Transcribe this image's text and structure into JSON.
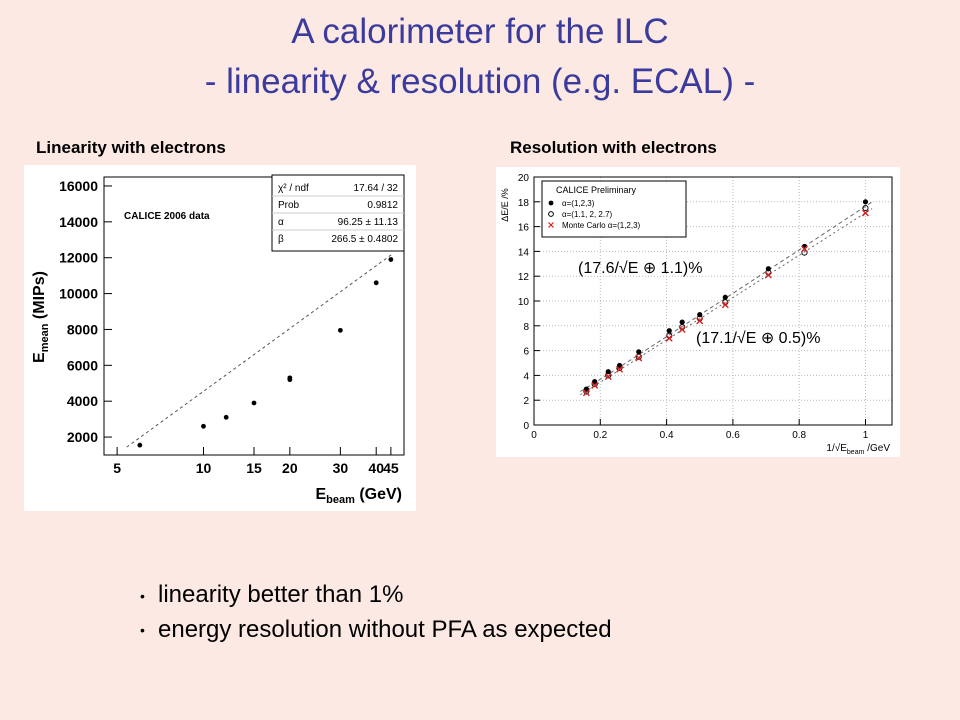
{
  "slide": {
    "title_line1": "A calorimeter for the ILC",
    "title_line2": "- linearity & resolution (e.g. ECAL) -",
    "left_subtitle": "Linearity with electrons",
    "right_subtitle": "Resolution with electrons",
    "bullets": [
      "linearity better than 1%",
      "energy resolution without PFA as expected"
    ]
  },
  "colors": {
    "title": "#3b3b9e",
    "background": "#fde9e4",
    "mc_points": "#d42020"
  },
  "chart_data": [
    {
      "type": "scatter",
      "xlabel_main": "E",
      "xlabel_sub": "beam",
      "xlabel_unit": " (GeV)",
      "ylabel_main": "E",
      "ylabel_sub": "mean",
      "ylabel_unit": " (MIPs)",
      "x_scale": "log",
      "xlim": [
        4.5,
        50
      ],
      "ylim": [
        1000,
        16500
      ],
      "x_ticks": [
        5,
        10,
        15,
        20,
        30,
        40,
        45
      ],
      "y_ticks": [
        2000,
        4000,
        6000,
        8000,
        10000,
        12000,
        14000,
        16000
      ],
      "annotation": "CALICE 2006 data",
      "fit_line": {
        "slope": 266.5,
        "intercept": 0
      },
      "stats_box": [
        {
          "label": "χ² / ndf",
          "value": "17.64 / 32"
        },
        {
          "label": "Prob",
          "value": "0.9812"
        },
        {
          "label": "α",
          "value": "96.25 ± 11.13"
        },
        {
          "label": "β",
          "value": "266.5 ± 0.4802"
        }
      ],
      "series": [
        {
          "x": [
            6,
            10,
            12,
            15,
            20,
            20,
            30,
            40,
            45
          ],
          "y": [
            1550,
            2600,
            3100,
            3900,
            5200,
            5300,
            7950,
            10600,
            11900
          ]
        }
      ]
    },
    {
      "type": "scatter",
      "xlabel": "1/√E",
      "xlabel_sub": "beam",
      "xlabel_unit": " /GeV",
      "ylabel": "ΔE/E /%",
      "xlim": [
        0,
        1.08
      ],
      "ylim": [
        0,
        20
      ],
      "x_ticks": [
        0,
        0.2,
        0.4,
        0.6,
        0.8,
        1
      ],
      "y_ticks": [
        0,
        2,
        4,
        6,
        8,
        10,
        12,
        14,
        16,
        18,
        20
      ],
      "legend_title": "CALICE Preliminary",
      "legend_position": "top-left",
      "annotations": [
        "(17.6/√E  ⊕ 1.1)%",
        "(17.1/√E  ⊕ 0.5)%"
      ],
      "series": [
        {
          "name": "α=(1,2,3)",
          "marker": "filled-circle",
          "x": [
            0.158,
            0.183,
            0.224,
            0.258,
            0.316,
            0.408,
            0.447,
            0.5,
            0.577,
            0.707,
            0.816,
            1.0
          ],
          "y": [
            2.9,
            3.5,
            4.3,
            4.8,
            5.9,
            7.6,
            8.3,
            8.9,
            10.3,
            12.6,
            14.4,
            18.0
          ]
        },
        {
          "name": "α=(1.1, 2, 2.7)",
          "marker": "open-circle",
          "x": [
            0.158,
            0.183,
            0.224,
            0.258,
            0.316,
            0.408,
            0.447,
            0.5,
            0.577,
            0.707,
            0.816,
            1.0
          ],
          "y": [
            2.7,
            3.3,
            4.0,
            4.6,
            5.5,
            7.2,
            7.9,
            8.6,
            9.9,
            12.3,
            13.9,
            17.5
          ]
        },
        {
          "name": "Monte Carlo  α=(1,2,3)",
          "marker": "red-cross",
          "x": [
            0.158,
            0.183,
            0.224,
            0.258,
            0.316,
            0.408,
            0.447,
            0.5,
            0.577,
            0.707,
            0.816,
            1.0
          ],
          "y": [
            2.6,
            3.2,
            3.9,
            4.5,
            5.4,
            7.0,
            7.7,
            8.4,
            9.7,
            12.1,
            14.2,
            17.1
          ]
        }
      ],
      "fit_curves": [
        {
          "a": 17.6,
          "c": 1.1
        },
        {
          "a": 17.1,
          "c": 0.5
        }
      ]
    }
  ]
}
